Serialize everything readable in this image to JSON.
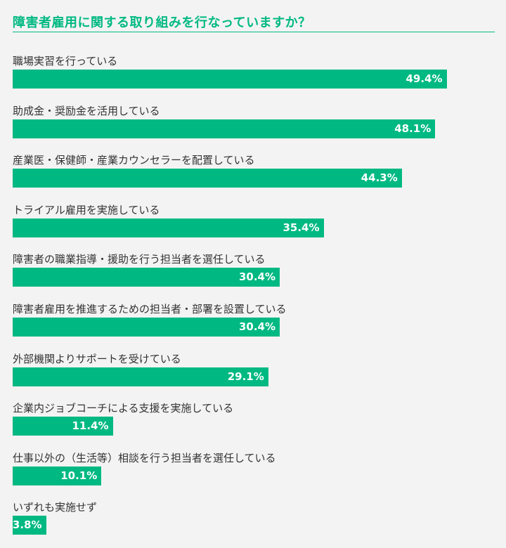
{
  "title": "障害者雇用に関する取り組みを行なっていますか？",
  "colors": {
    "accent": "#00b982",
    "background": "#f3f3f3",
    "label_text": "#333333",
    "value_text": "#ffffff"
  },
  "chart_data": {
    "type": "bar",
    "orientation": "horizontal",
    "title": "障害者雇用に関する取り組みを行なっていますか？",
    "unit": "%",
    "xlim": [
      0,
      100
    ],
    "categories": [
      "職場実習を行っている",
      "助成金・奨励金を活用している",
      "産業医・保健師・産業カウンセラーを配置している",
      "トライアル雇用を実施している",
      "障害者の職業指導・援助を行う担当者を選任している",
      "障害者雇用を推進するための担当者・部署を設置している",
      "外部機関よりサポートを受けている",
      "企業内ジョブコーチによる支援を実施している",
      "仕事以外の（生活等）相談を行う担当者を選任している",
      "いずれも実施せず"
    ],
    "values": [
      49.4,
      48.1,
      44.3,
      35.4,
      30.4,
      30.4,
      29.1,
      11.4,
      10.1,
      3.8
    ],
    "value_labels": [
      "49.4%",
      "48.1%",
      "44.3%",
      "35.4%",
      "30.4%",
      "30.4%",
      "29.1%",
      "11.4%",
      "10.1%",
      "3.8%"
    ]
  }
}
